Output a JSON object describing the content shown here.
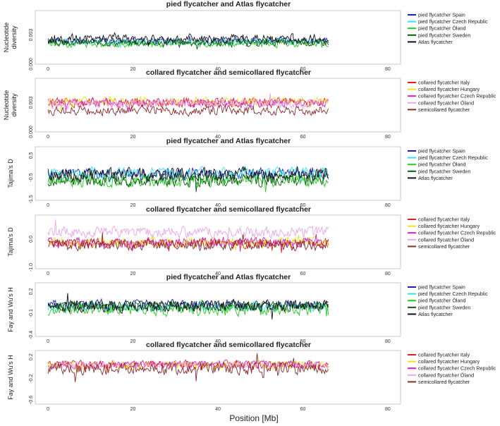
{
  "colors": {
    "pied flycatcher Spain": "#1f1fb4",
    "pied flycatcher Czech Republic": "#33e0ef",
    "pied flycatcher Öland": "#22cc22",
    "pied flycatcher Sweden": "#0b5a0b",
    "Atlas flycatcher": "#111111",
    "collared flycatcher Italy": "#e01e1e",
    "collared flycatcher Hungary": "#f2e21a",
    "collared flycatcher Czech Republic": "#d81bc8",
    "collared flycatcher Öland": "#e8a6e6",
    "semicollared flycatcher": "#8b2a2a"
  },
  "xlabel": "Position [Mb]",
  "chart_data": [
    {
      "type": "line",
      "title": "pied flycatcher and Atlas flycatcher",
      "ylabel": [
        "Nucleotide",
        "diversity"
      ],
      "xlim": [
        -3,
        83
      ],
      "ylim": [
        0,
        0.0055
      ],
      "x_ticks": [
        "0",
        "20",
        "40",
        "60",
        "80"
      ],
      "y_ticks": [
        {
          "value": 0,
          "label": "0.000"
        },
        {
          "value": 0.003,
          "label": "0.003"
        }
      ],
      "x_range": [
        0,
        66
      ],
      "series": [
        {
          "name": "pied flycatcher Spain",
          "base": 0.0024,
          "amp": 0.0003,
          "seed": 11
        },
        {
          "name": "pied flycatcher Czech Republic",
          "base": 0.0023,
          "amp": 0.0003,
          "seed": 12
        },
        {
          "name": "pied flycatcher Öland",
          "base": 0.0021,
          "amp": 0.0003,
          "seed": 13
        },
        {
          "name": "pied flycatcher Sweden",
          "base": 0.0022,
          "amp": 0.0003,
          "seed": 14
        },
        {
          "name": "Atlas flycatcher",
          "base": 0.0026,
          "amp": 0.0004,
          "seed": 15
        }
      ]
    },
    {
      "type": "line",
      "title": "collared flycatcher and semicollared flycatcher",
      "ylabel": [
        "Nucleotide",
        "diversity"
      ],
      "xlim": [
        -3,
        83
      ],
      "ylim": [
        0,
        0.0055
      ],
      "x_ticks": [
        "0",
        "20",
        "40",
        "60",
        "80"
      ],
      "y_ticks": [
        {
          "value": 0,
          "label": "0.000"
        },
        {
          "value": 0.003,
          "label": "0.003"
        }
      ],
      "x_range": [
        0,
        66
      ],
      "series": [
        {
          "name": "collared flycatcher Italy",
          "base": 0.003,
          "amp": 0.0004,
          "seed": 21
        },
        {
          "name": "collared flycatcher Hungary",
          "base": 0.0031,
          "amp": 0.0004,
          "seed": 22
        },
        {
          "name": "collared flycatcher Czech Republic",
          "base": 0.003,
          "amp": 0.0004,
          "seed": 23
        },
        {
          "name": "collared flycatcher Öland",
          "base": 0.0029,
          "amp": 0.0004,
          "seed": 24
        },
        {
          "name": "semicollared flycatcher",
          "base": 0.0022,
          "amp": 0.0004,
          "seed": 25
        }
      ]
    },
    {
      "type": "line",
      "title": "pied flycatcher and Atlas flycatcher",
      "ylabel": [
        "Tajima's D"
      ],
      "xlim": [
        -3,
        83
      ],
      "ylim": [
        -1.55,
        0.9
      ],
      "x_ticks": [
        "0",
        "20",
        "40",
        "60",
        "80"
      ],
      "y_ticks": [
        {
          "value": -1.5,
          "label": "-1.5"
        },
        {
          "value": -0.5,
          "label": "-0.5"
        },
        {
          "value": 0.5,
          "label": "0.5"
        }
      ],
      "x_range": [
        0,
        66
      ],
      "series": [
        {
          "name": "pied flycatcher Spain",
          "base": -0.35,
          "amp": 0.22,
          "seed": 31
        },
        {
          "name": "pied flycatcher Czech Republic",
          "base": -0.3,
          "amp": 0.22,
          "seed": 32
        },
        {
          "name": "pied flycatcher Öland",
          "base": -0.65,
          "amp": 0.25,
          "seed": 33
        },
        {
          "name": "pied flycatcher Sweden",
          "base": -0.6,
          "amp": 0.25,
          "seed": 34
        },
        {
          "name": "Atlas flycatcher",
          "base": -0.35,
          "amp": 0.25,
          "seed": 35
        }
      ]
    },
    {
      "type": "line",
      "title": "collared flycatcher and semicollared flycatcher",
      "ylabel": [
        "Tajima's D"
      ],
      "xlim": [
        -3,
        83
      ],
      "ylim": [
        -1.05,
        0.85
      ],
      "x_ticks": [
        "0",
        "20",
        "40",
        "60",
        "80"
      ],
      "y_ticks": [
        {
          "value": -1.0,
          "label": "-1.0"
        },
        {
          "value": 0.0,
          "label": "0.0"
        }
      ],
      "x_range": [
        0,
        66
      ],
      "series": [
        {
          "name": "collared flycatcher Italy",
          "base": -0.15,
          "amp": 0.14,
          "seed": 41
        },
        {
          "name": "collared flycatcher Hungary",
          "base": -0.12,
          "amp": 0.15,
          "seed": 42
        },
        {
          "name": "collared flycatcher Czech Republic",
          "base": -0.12,
          "amp": 0.14,
          "seed": 43
        },
        {
          "name": "collared flycatcher Öland",
          "base": 0.25,
          "amp": 0.17,
          "seed": 44
        },
        {
          "name": "semicollared flycatcher",
          "base": -0.2,
          "amp": 0.17,
          "seed": 45
        }
      ]
    },
    {
      "type": "line",
      "title": "pied flycatcher and Atlas flycatcher",
      "ylabel": [
        "Fay and Wu's H"
      ],
      "xlim": [
        -3,
        83
      ],
      "ylim": [
        -0.42,
        0.32
      ],
      "x_ticks": [
        "0",
        "20",
        "40",
        "60",
        "80"
      ],
      "y_ticks": [
        {
          "value": -0.4,
          "label": "-0.4"
        },
        {
          "value": -0.1,
          "label": "-0.1"
        },
        {
          "value": 0.2,
          "label": "0.2"
        }
      ],
      "x_range": [
        0,
        66
      ],
      "series": [
        {
          "name": "pied flycatcher Spain",
          "base": 0.02,
          "amp": 0.06,
          "seed": 51
        },
        {
          "name": "pied flycatcher Czech Republic",
          "base": -0.02,
          "amp": 0.06,
          "seed": 52
        },
        {
          "name": "pied flycatcher Öland",
          "base": -0.05,
          "amp": 0.07,
          "seed": 53
        },
        {
          "name": "pied flycatcher Sweden",
          "base": 0.0,
          "amp": 0.06,
          "seed": 54
        },
        {
          "name": "Atlas flycatcher",
          "base": 0.0,
          "amp": 0.07,
          "seed": 55
        }
      ]
    },
    {
      "type": "line",
      "title": "collared flycatcher and semicollared flycatcher",
      "ylabel": [
        "Fay and Wu's H"
      ],
      "xlim": [
        -3,
        83
      ],
      "ylim": [
        -0.68,
        0.32
      ],
      "x_ticks": [
        "0",
        "20",
        "40",
        "60",
        "80"
      ],
      "y_ticks": [
        {
          "value": -0.6,
          "label": "-0.6"
        },
        {
          "value": -0.2,
          "label": "-0.2"
        },
        {
          "value": 0.2,
          "label": "0.2"
        }
      ],
      "x_range": [
        0,
        66
      ],
      "series": [
        {
          "name": "collared flycatcher Italy",
          "base": 0.05,
          "amp": 0.06,
          "seed": 61
        },
        {
          "name": "collared flycatcher Hungary",
          "base": 0.05,
          "amp": 0.06,
          "seed": 62
        },
        {
          "name": "collared flycatcher Czech Republic",
          "base": 0.06,
          "amp": 0.06,
          "seed": 63
        },
        {
          "name": "collared flycatcher Öland",
          "base": 0.05,
          "amp": 0.05,
          "seed": 64
        },
        {
          "name": "semicollared flycatcher",
          "base": -0.02,
          "amp": 0.1,
          "seed": 65
        }
      ]
    }
  ]
}
